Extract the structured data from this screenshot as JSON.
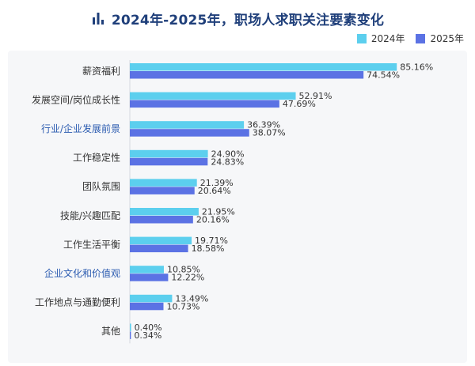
{
  "chart_data": {
    "type": "bar",
    "orientation": "horizontal",
    "title": "2024年-2025年，职场人求职关注要素变化",
    "categories": [
      "薪资福利",
      "发展空间/岗位成长性",
      "行业/企业发展前景",
      "工作稳定性",
      "团队氛围",
      "技能/兴趣匹配",
      "工作生活平衡",
      "企业文化和价值观",
      "工作地点与通勤便利",
      "其他"
    ],
    "highlighted_categories": [
      "行业/企业发展前景",
      "企业文化和价值观"
    ],
    "series": [
      {
        "name": "2024年",
        "values": [
          85.16,
          52.91,
          36.39,
          24.9,
          21.39,
          21.95,
          19.71,
          10.85,
          13.49,
          0.4
        ],
        "labels": [
          "85.16%",
          "52.91%",
          "36.39%",
          "24.90%",
          "21.39%",
          "21.95%",
          "19.71%",
          "10.85%",
          "13.49%",
          "0.40%"
        ],
        "color": "#5ccfee"
      },
      {
        "name": "2025年",
        "values": [
          74.54,
          47.69,
          38.07,
          24.83,
          20.64,
          20.16,
          18.58,
          12.22,
          10.73,
          0.34
        ],
        "labels": [
          "74.54%",
          "47.69%",
          "38.07%",
          "24.83%",
          "20.64%",
          "20.16%",
          "18.58%",
          "12.22%",
          "10.73%",
          "0.34%"
        ],
        "color": "#5b72e4"
      }
    ],
    "xlim": [
      0,
      100
    ],
    "grid": false,
    "legend_position": "top-right"
  },
  "colors": {
    "title": "#1f3f7a",
    "category_default": "#333333",
    "category_highlight": "#2b5bb0"
  },
  "icons": {
    "title_icon": "bar-chart-icon"
  }
}
